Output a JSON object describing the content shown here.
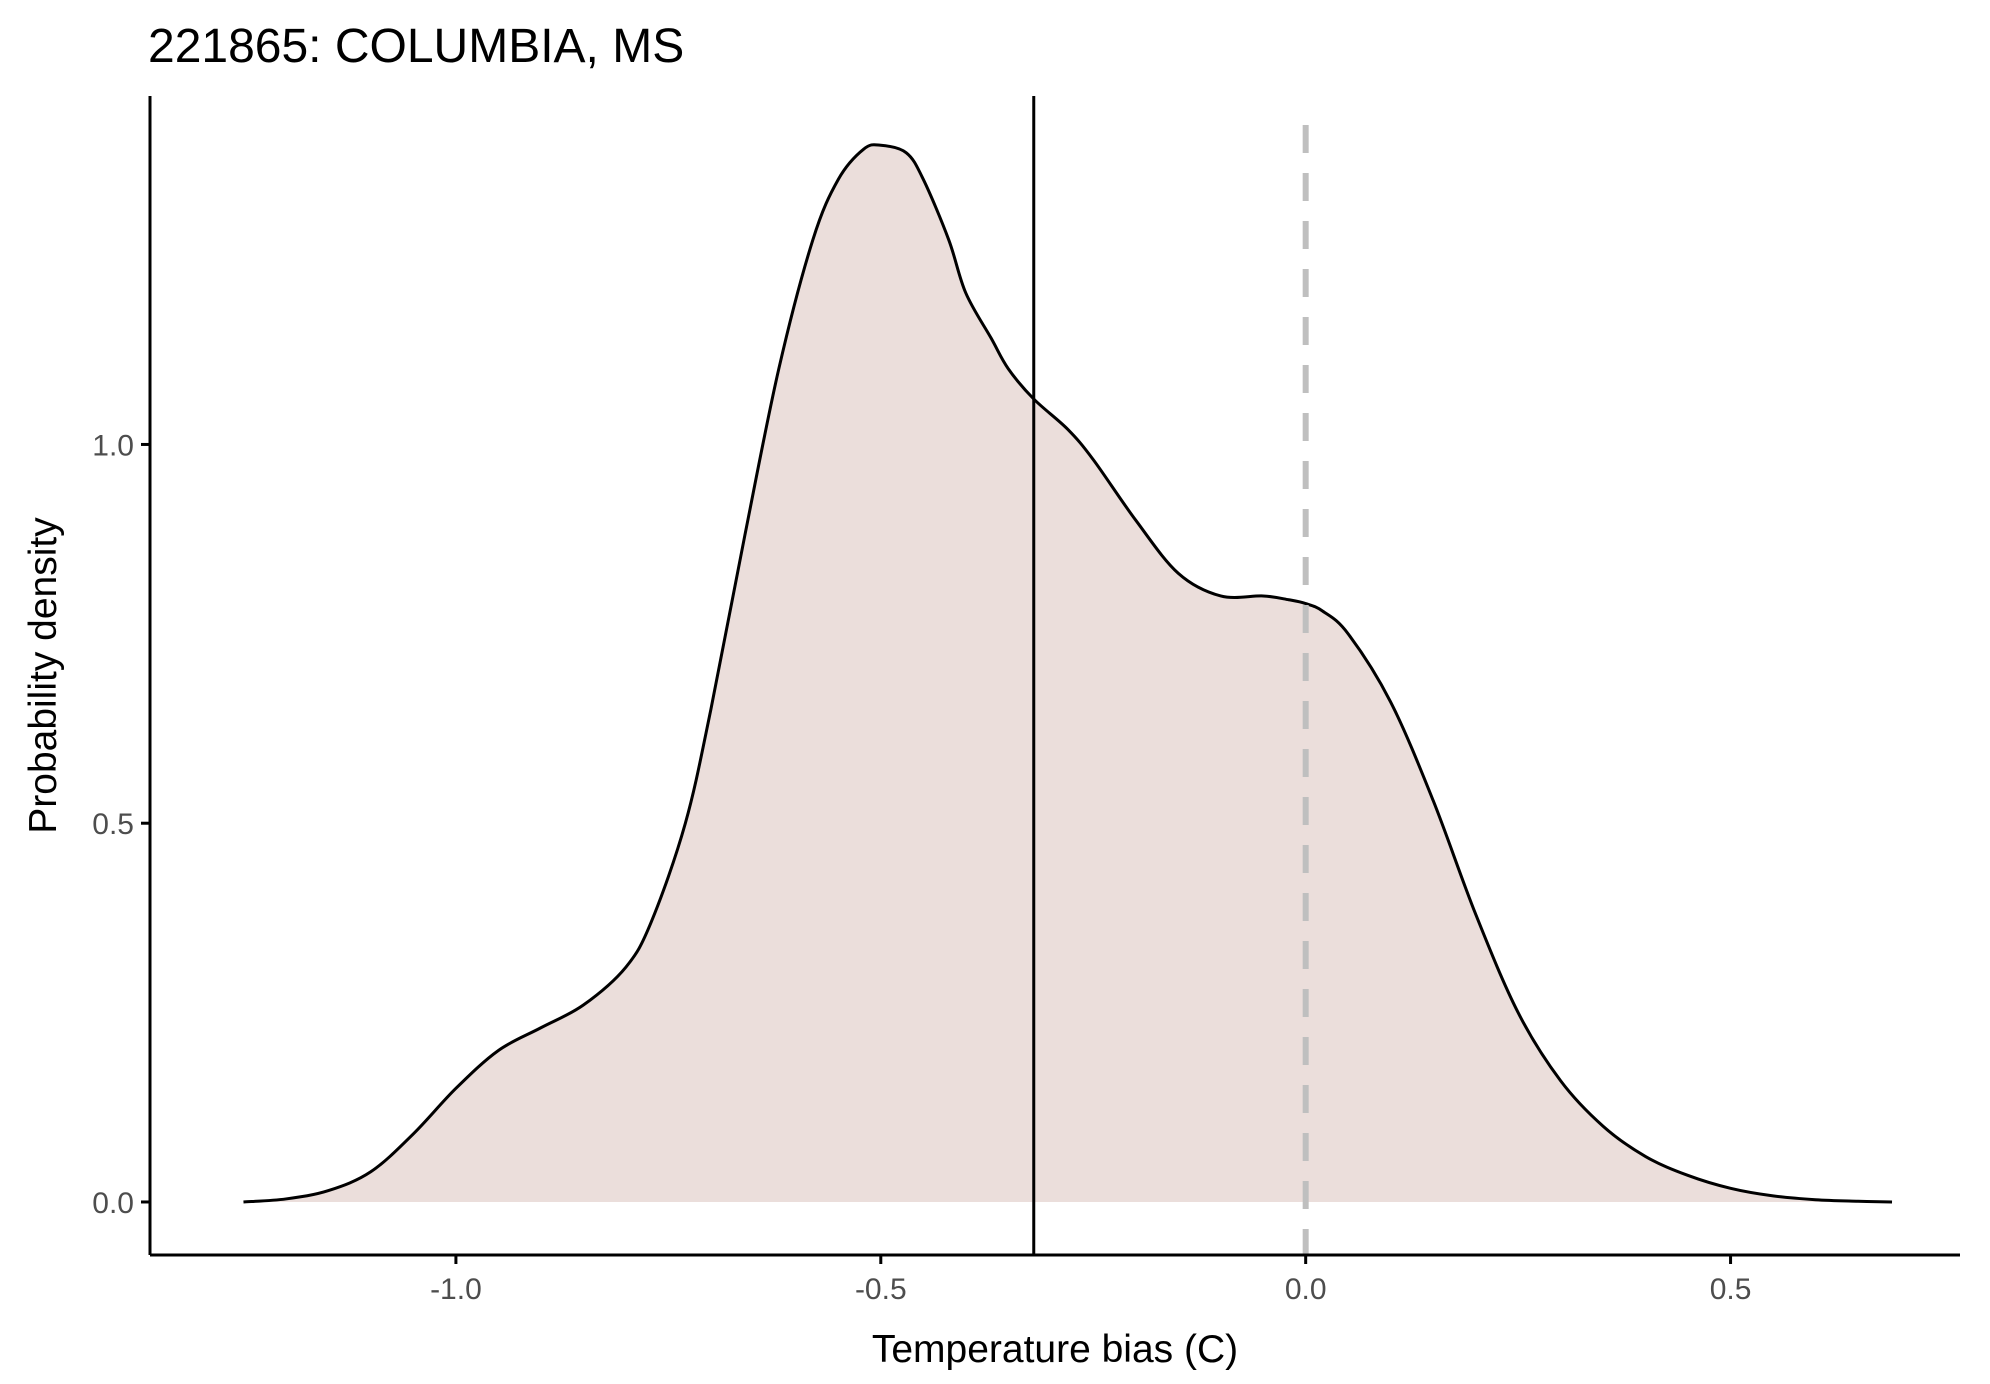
{
  "chart_data": {
    "type": "area",
    "title": "221865: COLUMBIA, MS",
    "xlabel": "Temperature bias (C)",
    "ylabel": "Probability density",
    "xlim": [
      -1.36,
      0.77
    ],
    "ylim": [
      -0.07,
      1.46
    ],
    "x_ticks": [
      -1.0,
      -0.5,
      0.0,
      0.5
    ],
    "x_tick_labels": [
      "-1.0",
      "-0.5",
      "0.0",
      "0.5"
    ],
    "y_ticks": [
      0.0,
      0.5,
      1.0
    ],
    "y_tick_labels": [
      "0.0",
      "0.5",
      "1.0"
    ],
    "grid": false,
    "series": [
      {
        "x": [
          -1.25,
          -1.2,
          -1.15,
          -1.1,
          -1.05,
          -1.0,
          -0.95,
          -0.9,
          -0.85,
          -0.8,
          -0.77,
          -0.73,
          -0.7,
          -0.66,
          -0.62,
          -0.58,
          -0.55,
          -0.52,
          -0.5,
          -0.47,
          -0.45,
          -0.42,
          -0.4,
          -0.37,
          -0.35,
          -0.32,
          -0.28,
          -0.25,
          -0.2,
          -0.15,
          -0.1,
          -0.05,
          -0.02,
          0.0,
          0.02,
          0.05,
          0.1,
          0.15,
          0.2,
          0.25,
          0.3,
          0.35,
          0.4,
          0.45,
          0.5,
          0.55,
          0.6,
          0.65,
          0.69
        ],
        "y": [
          0.0,
          0.004,
          0.015,
          0.04,
          0.09,
          0.15,
          0.2,
          0.23,
          0.26,
          0.31,
          0.37,
          0.5,
          0.65,
          0.88,
          1.1,
          1.27,
          1.35,
          1.39,
          1.395,
          1.385,
          1.35,
          1.27,
          1.2,
          1.14,
          1.1,
          1.06,
          1.02,
          0.98,
          0.9,
          0.83,
          0.8,
          0.8,
          0.795,
          0.79,
          0.78,
          0.75,
          0.66,
          0.53,
          0.38,
          0.25,
          0.16,
          0.1,
          0.06,
          0.035,
          0.018,
          0.008,
          0.003,
          0.001,
          0.0
        ]
      }
    ],
    "vertical_lines": [
      {
        "x": -0.32,
        "style": "solid",
        "color": "#000000"
      },
      {
        "x": 0.0,
        "style": "dashed",
        "color": "#bfbfbf"
      }
    ],
    "colors": {
      "fill": "#ebdedb",
      "curve": "#000000",
      "axis": "#000000"
    }
  }
}
